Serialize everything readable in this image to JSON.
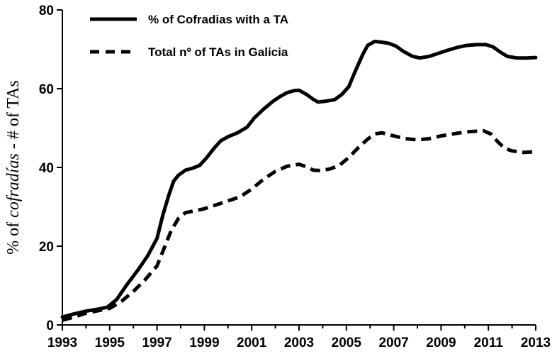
{
  "chart_data": {
    "type": "line",
    "title": "",
    "xlabel": "",
    "ylabel": {
      "prefix": "% of ",
      "emphasis": "cofradías",
      "suffix": " - # of TAs"
    },
    "xlim": [
      1993,
      2013
    ],
    "ylim": [
      0,
      80
    ],
    "x_ticks": [
      1993,
      1995,
      1997,
      1999,
      2001,
      2003,
      2005,
      2007,
      2009,
      2011,
      2013
    ],
    "y_ticks": [
      0,
      20,
      40,
      60,
      80
    ],
    "grid": false,
    "legend_position": "top-left",
    "series": [
      {
        "name": "% of Cofradias with a TA",
        "style": "solid",
        "color": "#000000",
        "points": [
          [
            1993,
            2
          ],
          [
            1993.5,
            2.8
          ],
          [
            1994,
            3.5
          ],
          [
            1994.5,
            4
          ],
          [
            1994.9,
            4.5
          ],
          [
            1995.3,
            6.5
          ],
          [
            1995.7,
            10
          ],
          [
            1996.2,
            14
          ],
          [
            1996.6,
            17.5
          ],
          [
            1997,
            22
          ],
          [
            1997.25,
            28
          ],
          [
            1997.5,
            33
          ],
          [
            1997.7,
            36.5
          ],
          [
            1997.9,
            38
          ],
          [
            1998.2,
            39.3
          ],
          [
            1998.5,
            39.8
          ],
          [
            1998.8,
            40.5
          ],
          [
            1999.1,
            42.5
          ],
          [
            1999.4,
            44.8
          ],
          [
            1999.7,
            46.8
          ],
          [
            2000,
            47.8
          ],
          [
            2000.4,
            48.8
          ],
          [
            2000.8,
            50.2
          ],
          [
            2001.1,
            52.5
          ],
          [
            2001.5,
            54.8
          ],
          [
            2001.9,
            56.8
          ],
          [
            2002.2,
            58
          ],
          [
            2002.5,
            59
          ],
          [
            2002.8,
            59.5
          ],
          [
            2003,
            59.6
          ],
          [
            2003.3,
            58.6
          ],
          [
            2003.6,
            57.3
          ],
          [
            2003.8,
            56.6
          ],
          [
            2004.1,
            56.8
          ],
          [
            2004.5,
            57.2
          ],
          [
            2004.8,
            58.5
          ],
          [
            2005.1,
            60.5
          ],
          [
            2005.4,
            64.8
          ],
          [
            2005.7,
            68.8
          ],
          [
            2005.9,
            71
          ],
          [
            2006.2,
            72
          ],
          [
            2006.5,
            71.8
          ],
          [
            2006.8,
            71.5
          ],
          [
            2007.1,
            70.8
          ],
          [
            2007.4,
            69.5
          ],
          [
            2007.8,
            68.2
          ],
          [
            2008.1,
            67.8
          ],
          [
            2008.5,
            68.2
          ],
          [
            2008.9,
            69
          ],
          [
            2009.3,
            69.8
          ],
          [
            2009.7,
            70.5
          ],
          [
            2010.1,
            71
          ],
          [
            2010.5,
            71.2
          ],
          [
            2010.9,
            71.2
          ],
          [
            2011.2,
            70.6
          ],
          [
            2011.5,
            69.3
          ],
          [
            2011.8,
            68.2
          ],
          [
            2012.2,
            67.8
          ],
          [
            2012.6,
            67.8
          ],
          [
            2013,
            67.9
          ]
        ]
      },
      {
        "name": "Total nº of TAs in Galicia",
        "style": "dashed",
        "color": "#000000",
        "points": [
          [
            1993,
            1.2
          ],
          [
            1993.5,
            2
          ],
          [
            1994,
            3
          ],
          [
            1994.5,
            3.6
          ],
          [
            1995,
            4.2
          ],
          [
            1995.5,
            6
          ],
          [
            1996,
            8.5
          ],
          [
            1996.5,
            11.5
          ],
          [
            1997,
            15
          ],
          [
            1997.3,
            19.5
          ],
          [
            1997.6,
            24
          ],
          [
            1997.9,
            27
          ],
          [
            1998.2,
            28.5
          ],
          [
            1998.6,
            29
          ],
          [
            1999,
            29.5
          ],
          [
            1999.5,
            30.5
          ],
          [
            2000,
            31.5
          ],
          [
            2000.5,
            32.5
          ],
          [
            2001,
            34.5
          ],
          [
            2001.5,
            37
          ],
          [
            2002,
            39
          ],
          [
            2002.5,
            40.3
          ],
          [
            2003,
            40.8
          ],
          [
            2003.3,
            40.2
          ],
          [
            2003.6,
            39.3
          ],
          [
            2003.9,
            39.2
          ],
          [
            2004.3,
            39.6
          ],
          [
            2004.7,
            40.5
          ],
          [
            2005.1,
            42.5
          ],
          [
            2005.5,
            45
          ],
          [
            2005.9,
            47.2
          ],
          [
            2006.2,
            48.5
          ],
          [
            2006.5,
            48.8
          ],
          [
            2007,
            48
          ],
          [
            2007.5,
            47.3
          ],
          [
            2008,
            47
          ],
          [
            2008.5,
            47.3
          ],
          [
            2009,
            48
          ],
          [
            2009.5,
            48.5
          ],
          [
            2010,
            49
          ],
          [
            2010.5,
            49.2
          ],
          [
            2010.8,
            49.3
          ],
          [
            2011.1,
            48.5
          ],
          [
            2011.4,
            46.5
          ],
          [
            2011.7,
            44.8
          ],
          [
            2012,
            44.2
          ],
          [
            2012.5,
            43.8
          ],
          [
            2013,
            44
          ]
        ]
      }
    ]
  }
}
